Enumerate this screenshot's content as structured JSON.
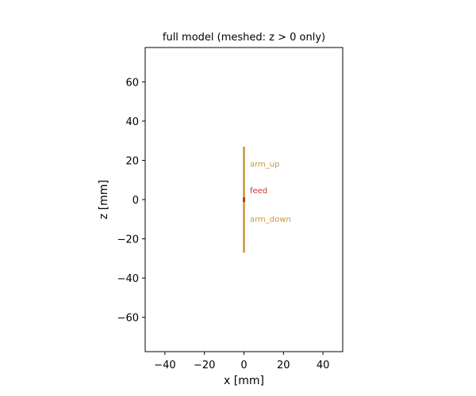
{
  "chart_data": {
    "type": "line",
    "title": "full model (meshed: z > 0 only)",
    "xlabel": "x [mm]",
    "ylabel": "z [mm]",
    "xlim": [
      -50,
      50
    ],
    "ylim": [
      -77.5,
      77.5
    ],
    "xticks": [
      -40,
      -20,
      0,
      20,
      40
    ],
    "xtick_labels": [
      "−40",
      "−20",
      "0",
      "20",
      "40"
    ],
    "yticks": [
      -60,
      -40,
      -20,
      0,
      20,
      40,
      60
    ],
    "ytick_labels": [
      "−60",
      "−40",
      "−20",
      "0",
      "20",
      "40",
      "60"
    ],
    "grid": false,
    "series": [
      {
        "name": "arm_up",
        "color": "#c8963c",
        "x": [
          0,
          0
        ],
        "z": [
          0,
          27
        ]
      },
      {
        "name": "arm_down",
        "color": "#c8963c",
        "x": [
          0,
          0
        ],
        "z": [
          -27,
          0
        ]
      },
      {
        "name": "feed",
        "color": "#c83232",
        "x": [
          0,
          0
        ],
        "z": [
          -1.2,
          1.2
        ]
      }
    ],
    "annotations": [
      {
        "text": "arm_up",
        "x": 3,
        "z": 18,
        "color": "#c8963c"
      },
      {
        "text": "feed",
        "x": 3,
        "z": 4.5,
        "color": "#c83232"
      },
      {
        "text": "arm_down",
        "x": 3,
        "z": -10,
        "color": "#c8963c"
      }
    ]
  }
}
